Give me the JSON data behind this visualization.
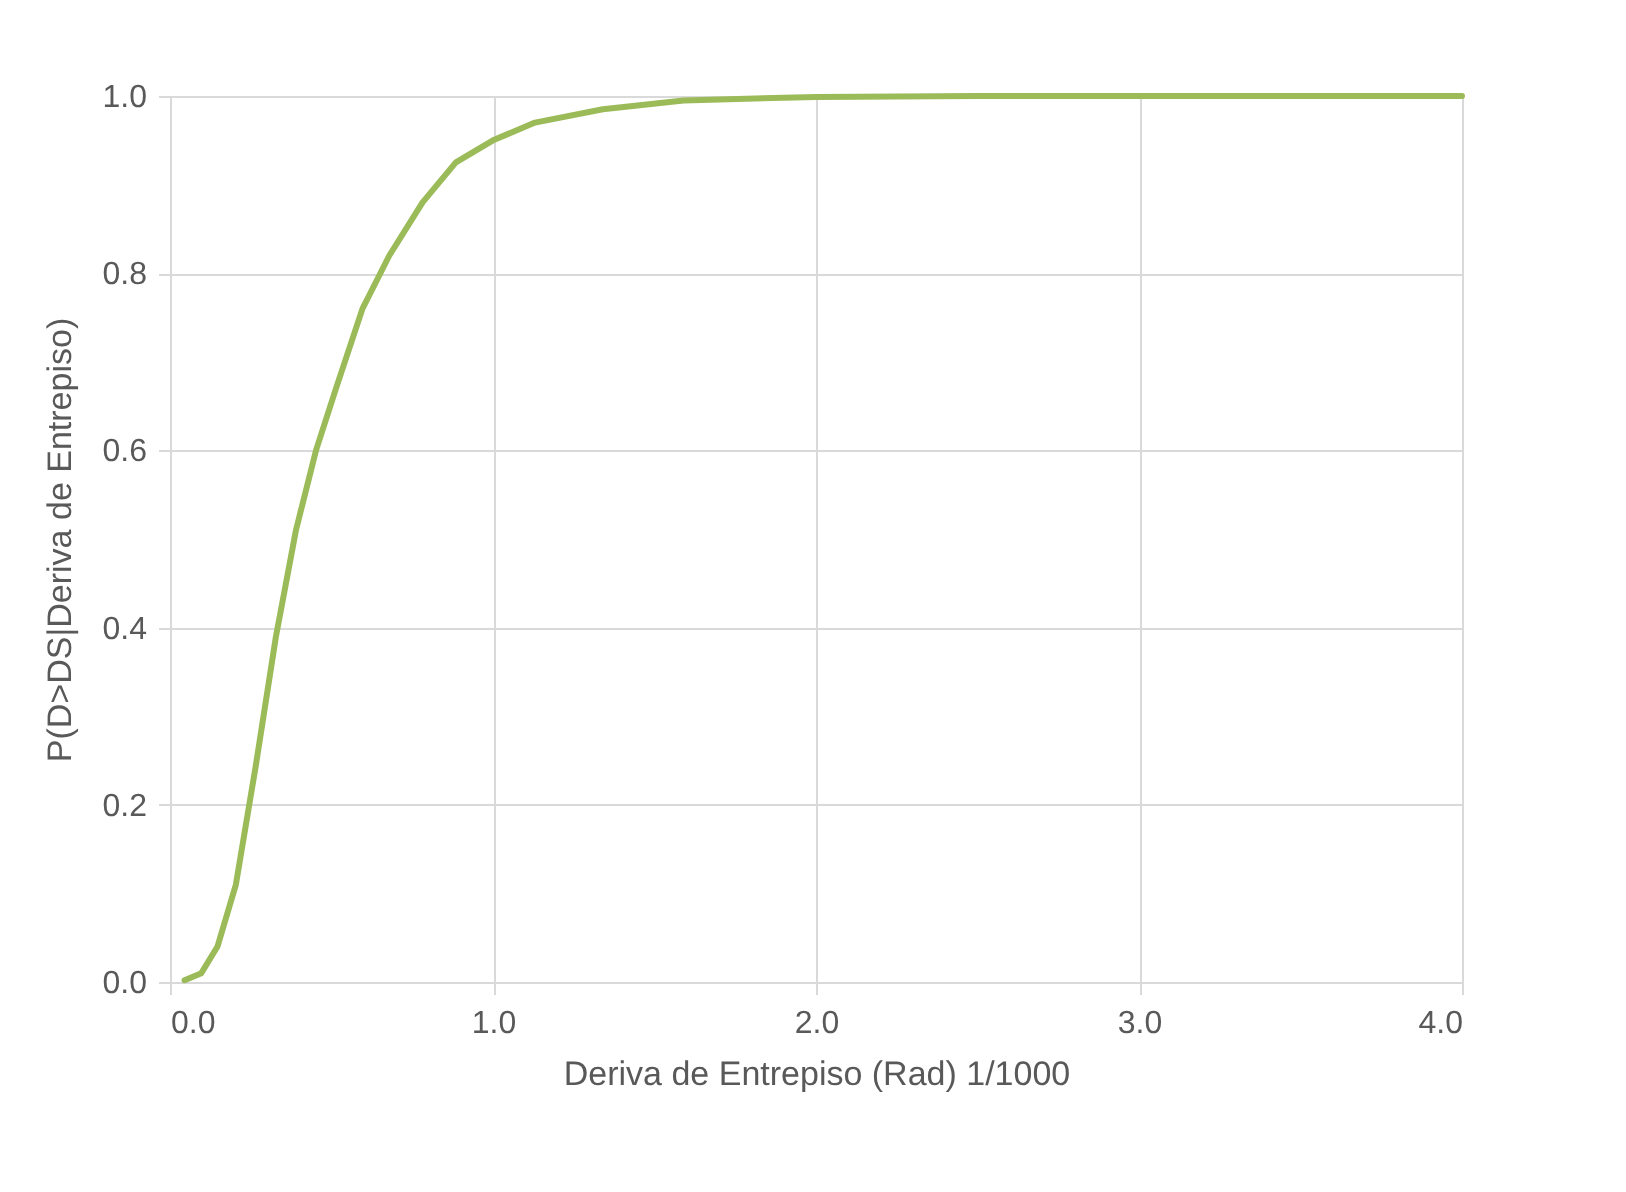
{
  "chart_data": {
    "type": "line",
    "xlabel": "Deriva de Entrepiso (Rad) 1/1000",
    "ylabel": "P(D>DS|Deriva de Entrepiso)",
    "x": [
      0.045,
      0.097,
      0.147,
      0.204,
      0.266,
      0.328,
      0.39,
      0.452,
      0.514,
      0.596,
      0.679,
      0.782,
      0.885,
      1.0,
      1.13,
      1.34,
      1.59,
      2.0,
      2.5,
      3.0,
      3.5,
      4.0
    ],
    "series": [
      {
        "color": "#9bbb59",
        "values": [
          0.002,
          0.01,
          0.04,
          0.11,
          0.245,
          0.39,
          0.51,
          0.6,
          0.67,
          0.76,
          0.82,
          0.88,
          0.925,
          0.95,
          0.97,
          0.985,
          0.995,
          0.999,
          1.0,
          1.0,
          1.0,
          1.0
        ]
      }
    ],
    "xlim": [
      0,
      4
    ],
    "ylim": [
      0,
      1
    ],
    "xticks": [
      {
        "value": 0,
        "label": "0.0"
      },
      {
        "value": 1,
        "label": "1.0"
      },
      {
        "value": 2,
        "label": "2.0"
      },
      {
        "value": 3,
        "label": "3.0"
      },
      {
        "value": 4,
        "label": "4.0"
      }
    ],
    "yticks": [
      {
        "value": 0,
        "label": "0.0"
      },
      {
        "value": 0.2,
        "label": "0.2"
      },
      {
        "value": 0.4,
        "label": "0.4"
      },
      {
        "value": 0.6,
        "label": "0.6"
      },
      {
        "value": 0.8,
        "label": "0.8"
      },
      {
        "value": 1,
        "label": "1.0"
      }
    ],
    "grid": true
  }
}
